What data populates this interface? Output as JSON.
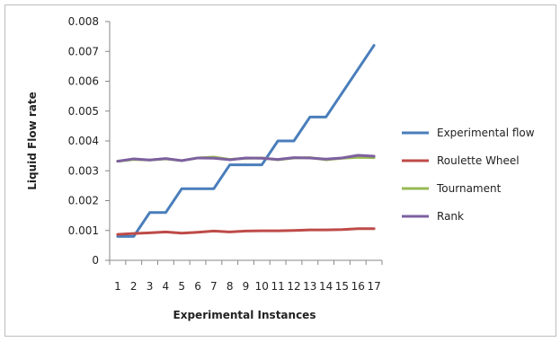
{
  "chart_data": {
    "type": "line",
    "title": "",
    "xlabel": "Experimental Instances",
    "ylabel": "Liquid Flow rate",
    "categories": [
      "1",
      "2",
      "3",
      "4",
      "5",
      "6",
      "7",
      "8",
      "9",
      "10",
      "11",
      "12",
      "13",
      "14",
      "15",
      "16",
      "17"
    ],
    "ylim": [
      0,
      0.008
    ],
    "yticks": [
      "0",
      "0.001",
      "0.002",
      "0.003",
      "0.004",
      "0.005",
      "0.006",
      "0.007",
      "0.008"
    ],
    "grid": false,
    "legend_position": "right",
    "series": [
      {
        "name": "Experimental flow",
        "color": "#4a7ebb",
        "values": [
          0.0008,
          0.0008,
          0.0016,
          0.0016,
          0.0024,
          0.0024,
          0.0024,
          0.0032,
          0.0032,
          0.0032,
          0.004,
          0.004,
          0.0048,
          0.0048,
          0.0056,
          0.0064,
          0.0072
        ]
      },
      {
        "name": "Roulette Wheel",
        "color": "#be4b48",
        "values": [
          0.00087,
          0.0009,
          0.00092,
          0.00095,
          0.00091,
          0.00094,
          0.00098,
          0.00095,
          0.00098,
          0.00099,
          0.00099,
          0.001,
          0.00102,
          0.00102,
          0.00103,
          0.00106,
          0.00106
        ]
      },
      {
        "name": "Tournament",
        "color": "#98b954",
        "values": [
          0.00332,
          0.00338,
          0.00336,
          0.0034,
          0.00334,
          0.00343,
          0.00346,
          0.00338,
          0.00342,
          0.00343,
          0.00337,
          0.00343,
          0.00344,
          0.00337,
          0.00342,
          0.00345,
          0.00344
        ]
      },
      {
        "name": "Rank",
        "color": "#7d60a0",
        "values": [
          0.00332,
          0.0034,
          0.00336,
          0.00341,
          0.00334,
          0.00343,
          0.00342,
          0.00337,
          0.00343,
          0.00342,
          0.00338,
          0.00344,
          0.00343,
          0.00339,
          0.00343,
          0.00352,
          0.00349
        ]
      }
    ]
  }
}
